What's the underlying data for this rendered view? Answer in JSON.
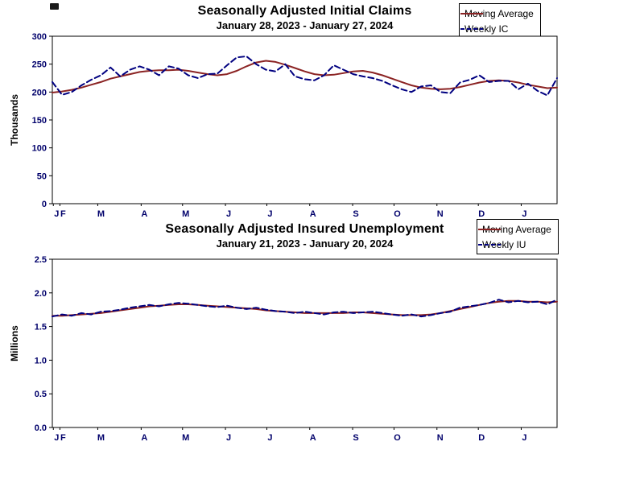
{
  "page": {
    "background": "#ffffff"
  },
  "colors": {
    "moving_average": "#8b2323",
    "weekly": "#000080",
    "axis_text": "#00006b",
    "plot_border": "#000000"
  },
  "chart_data": [
    {
      "type": "line",
      "title": "Seasonally Adjusted Initial Claims",
      "subtitle": "January 28, 2023 - January 27, 2024",
      "ylabel": "Thousands",
      "ylim": [
        0,
        300
      ],
      "y_ticks": [
        "0",
        "50",
        "100",
        "150",
        "200",
        "250",
        "300"
      ],
      "x_tick_labels": [
        "J",
        "F",
        "M",
        "A",
        "M",
        "J",
        "J",
        "A",
        "S",
        "O",
        "N",
        "D",
        "J"
      ],
      "grid": false,
      "legend_position": "top-right",
      "series": [
        {
          "name": "Moving Average",
          "color": "#8b2323",
          "style": "solid",
          "values": [
            199,
            201,
            204,
            208,
            213,
            218,
            224,
            228,
            232,
            236,
            238,
            239,
            239,
            240,
            238,
            235,
            232,
            230,
            232,
            238,
            246,
            253,
            256,
            254,
            249,
            243,
            237,
            232,
            230,
            231,
            234,
            237,
            238,
            235,
            230,
            224,
            218,
            212,
            208,
            206,
            205,
            206,
            209,
            213,
            217,
            220,
            221,
            220,
            217,
            213,
            210,
            207,
            208
          ]
        },
        {
          "name": "Weekly IC",
          "color": "#000080",
          "style": "dashed",
          "values": [
            218,
            195,
            200,
            212,
            222,
            230,
            244,
            228,
            240,
            246,
            240,
            230,
            246,
            242,
            230,
            225,
            232,
            233,
            248,
            262,
            264,
            250,
            240,
            237,
            250,
            228,
            223,
            221,
            230,
            248,
            240,
            232,
            228,
            225,
            220,
            212,
            205,
            200,
            210,
            212,
            200,
            198,
            217,
            222,
            230,
            218,
            220,
            220,
            205,
            215,
            202,
            194,
            225
          ]
        }
      ]
    },
    {
      "type": "line",
      "title": "Seasonally Adjusted Insured Unemployment",
      "subtitle": "January 21, 2023 - January 20, 2024",
      "ylabel": "Millions",
      "ylim": [
        0,
        2.5
      ],
      "y_ticks": [
        "0.0",
        "0.5",
        "1.0",
        "1.5",
        "2.0",
        "2.5"
      ],
      "x_tick_labels": [
        "J",
        "F",
        "M",
        "A",
        "M",
        "J",
        "J",
        "A",
        "S",
        "O",
        "N",
        "D",
        "J"
      ],
      "grid": false,
      "legend_position": "top-right",
      "series": [
        {
          "name": "Moving Average",
          "color": "#8b2323",
          "style": "solid",
          "values": [
            1.66,
            1.66,
            1.67,
            1.68,
            1.69,
            1.7,
            1.72,
            1.74,
            1.76,
            1.78,
            1.8,
            1.81,
            1.82,
            1.83,
            1.83,
            1.82,
            1.81,
            1.8,
            1.79,
            1.78,
            1.77,
            1.76,
            1.74,
            1.73,
            1.72,
            1.71,
            1.7,
            1.7,
            1.7,
            1.7,
            1.7,
            1.71,
            1.71,
            1.7,
            1.69,
            1.68,
            1.67,
            1.67,
            1.67,
            1.68,
            1.7,
            1.73,
            1.76,
            1.79,
            1.82,
            1.85,
            1.87,
            1.88,
            1.88,
            1.87,
            1.87,
            1.86,
            1.87
          ]
        },
        {
          "name": "Weekly IU",
          "color": "#000080",
          "style": "dashed",
          "values": [
            1.65,
            1.68,
            1.66,
            1.7,
            1.68,
            1.72,
            1.73,
            1.75,
            1.78,
            1.8,
            1.82,
            1.8,
            1.83,
            1.85,
            1.84,
            1.82,
            1.8,
            1.79,
            1.81,
            1.78,
            1.76,
            1.78,
            1.75,
            1.73,
            1.72,
            1.7,
            1.72,
            1.7,
            1.68,
            1.71,
            1.72,
            1.7,
            1.71,
            1.72,
            1.7,
            1.68,
            1.66,
            1.68,
            1.65,
            1.67,
            1.7,
            1.72,
            1.78,
            1.8,
            1.82,
            1.85,
            1.9,
            1.86,
            1.88,
            1.86,
            1.87,
            1.83,
            1.9
          ]
        }
      ]
    }
  ]
}
